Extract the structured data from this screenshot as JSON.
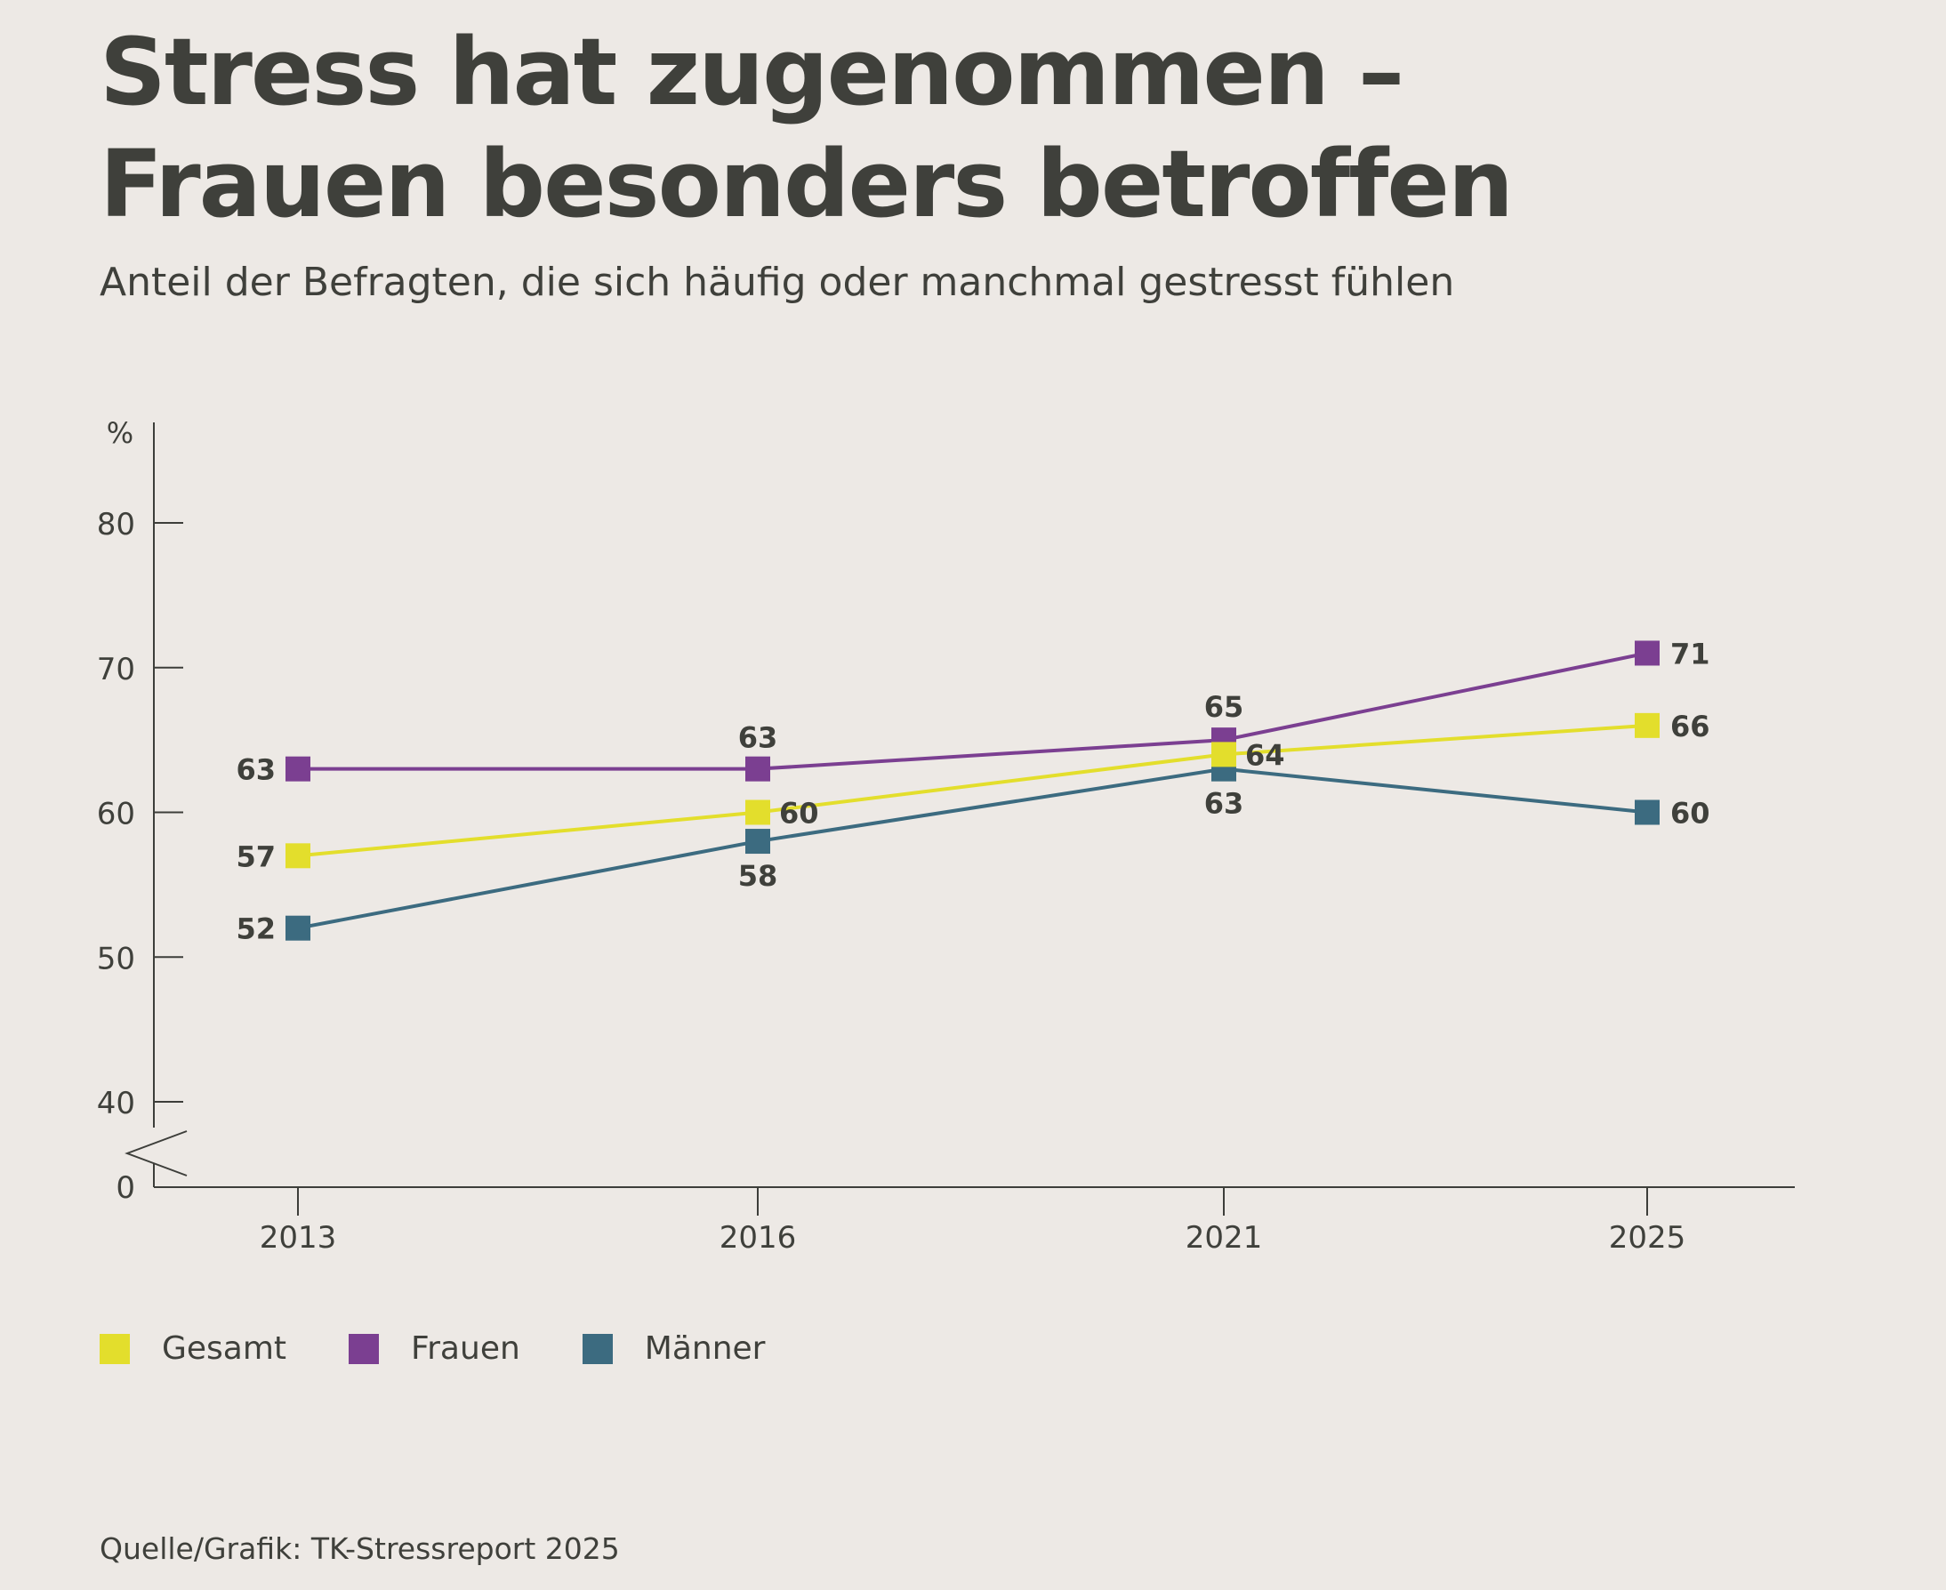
{
  "chart_data": {
    "type": "line",
    "title_lines": [
      "Stress hat zugenommen –",
      "Frauen besonders betroffen"
    ],
    "subtitle": "Anteil der Befragten, die sich häufig oder manchmal gestresst fühlen",
    "ylabel": "%",
    "yticks": [
      80,
      70,
      60,
      50,
      40
    ],
    "ybreak_label": "0",
    "ylim": [
      40,
      86
    ],
    "categories": [
      "2013",
      "2016",
      "2021",
      "2025"
    ],
    "series": [
      {
        "name": "Frauen",
        "color": "#7b3f91",
        "values": [
          63,
          63,
          65,
          71
        ],
        "labels": [
          "63",
          "63",
          "65",
          "71"
        ]
      },
      {
        "name": "Gesamt",
        "color": "#e3de2c",
        "values": [
          57,
          60,
          64,
          66
        ],
        "labels": [
          "57",
          "60",
          "64",
          "66"
        ]
      },
      {
        "name": "Männer",
        "color": "#3c6b80",
        "values": [
          52,
          58,
          63,
          60
        ],
        "labels": [
          "52",
          "58",
          "63",
          "60"
        ]
      }
    ],
    "legend": [
      {
        "name": "Gesamt",
        "color": "#e3de2c"
      },
      {
        "name": "Frauen",
        "color": "#7b3f91"
      },
      {
        "name": "Männer",
        "color": "#3c6b80"
      }
    ],
    "legend_position": "bottom-left",
    "grid": false
  },
  "source": "Quelle/Grafik: TK-Stressreport 2025"
}
